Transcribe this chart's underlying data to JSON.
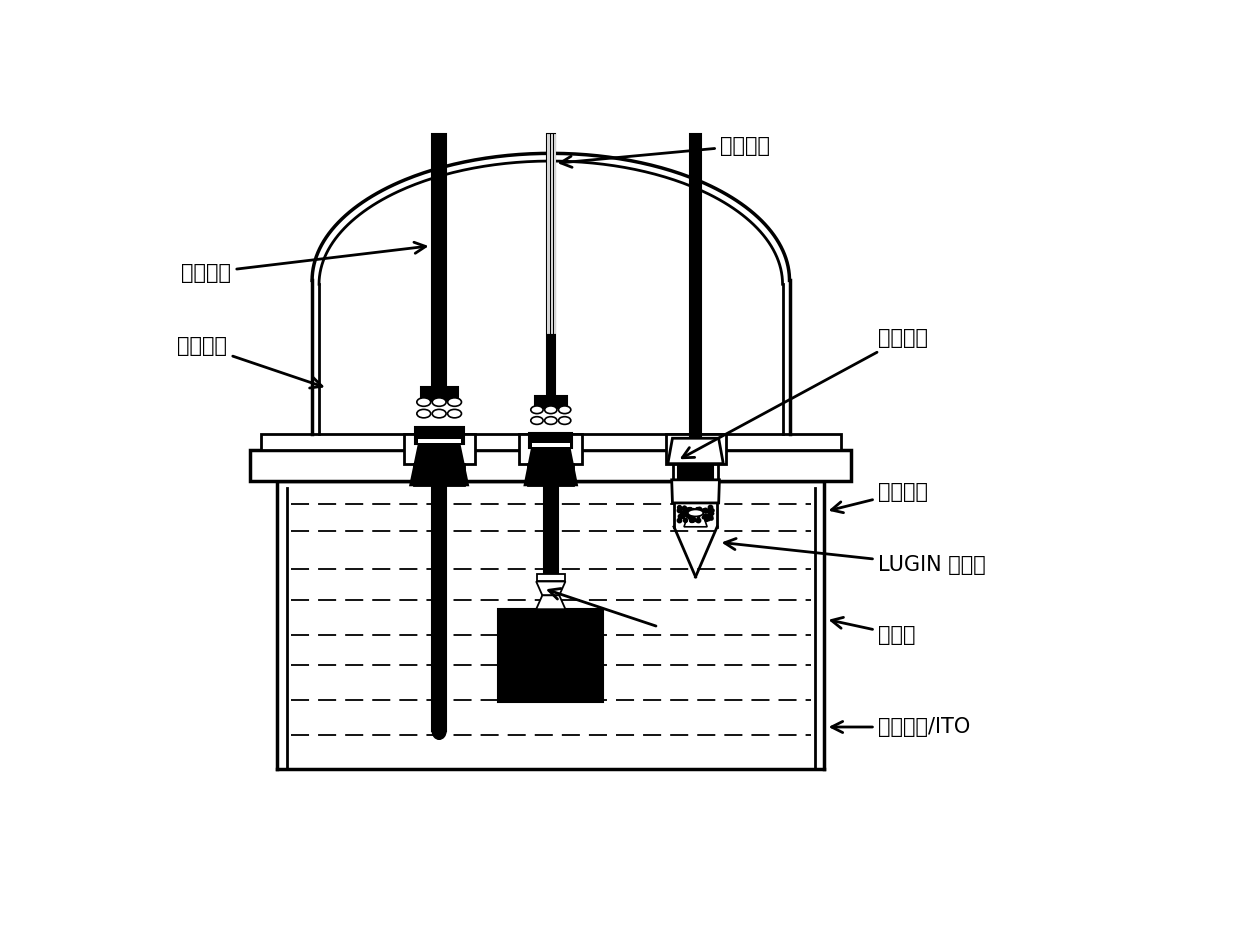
{
  "labels": {
    "working_electrode": "工作电极",
    "auxiliary_electrode": "辅助电极",
    "reference_electrode": "参比电极",
    "cell_top": "电池上部",
    "cell_bottom": "电池底部",
    "lugin_capillary": "LUGIN 毛细管",
    "electrolyte": "电解液",
    "metal_sample": "金属样品/ITO"
  },
  "bg_color": "#ffffff",
  "line_color": "#000000",
  "font_size": 15
}
